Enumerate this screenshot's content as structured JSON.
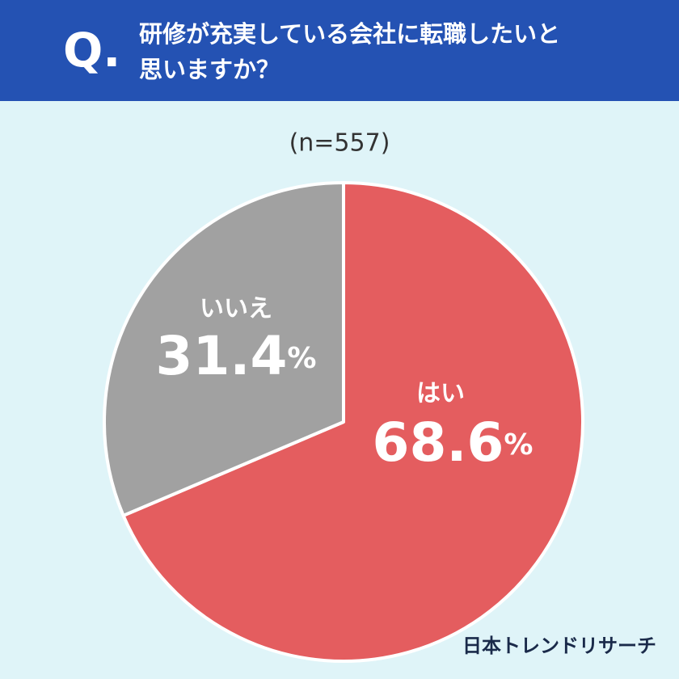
{
  "chart_data": {
    "type": "pie",
    "question_mark": "Q.",
    "title": [
      "研修が充実している会社に転職したいと",
      "思いますか？"
    ],
    "subtitle": "(n=557)",
    "categories": [
      "はい",
      "いいえ"
    ],
    "values": [
      68.6,
      31.4
    ],
    "value_labels": [
      "68.6%",
      "31.4%"
    ],
    "colors": [
      "#e45d5f",
      "#a1a1a1"
    ],
    "source": "日本トレンドリサーチ"
  }
}
